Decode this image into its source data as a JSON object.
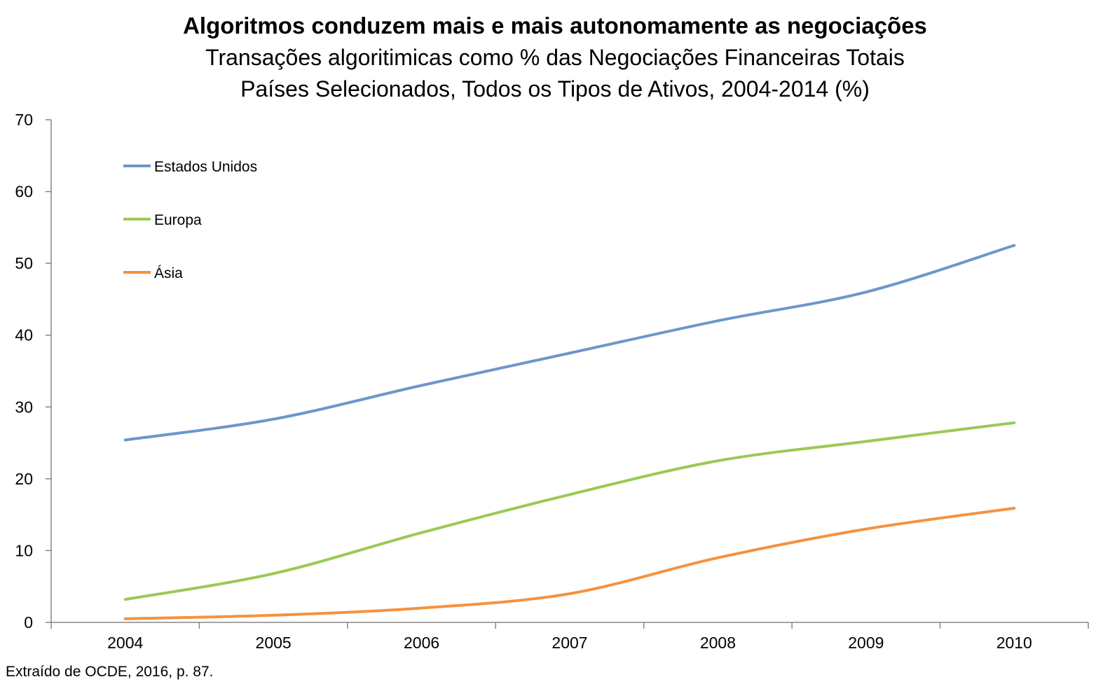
{
  "title": "Algoritmos conduzem mais e mais autonomamente as negociações",
  "subtitle1": "Transações algoritimicas como % das Negociações Financeiras Totais",
  "subtitle2": "Países Selecionados, Todos os Tipos de Ativos, 2004-2014 (%)",
  "footnote": "Extraído de OCDE, 2016, p. 87.",
  "chart_data": {
    "type": "line",
    "x": [
      "2004",
      "2005",
      "2006",
      "2007",
      "2008",
      "2009",
      "2010"
    ],
    "ylim": [
      0,
      70
    ],
    "yticks": [
      0,
      10,
      20,
      30,
      40,
      50,
      60,
      70
    ],
    "grid": false,
    "legend_position": "top-left",
    "series": [
      {
        "name": "Estados Unidos",
        "color": "#6C97CB",
        "values": [
          25.4,
          28.3,
          33.0,
          37.5,
          42.0,
          46.0,
          52.5
        ]
      },
      {
        "name": "Europa",
        "color": "#9BC956",
        "values": [
          3.2,
          6.8,
          12.5,
          17.8,
          22.5,
          25.2,
          27.8
        ]
      },
      {
        "name": "Ásia",
        "color": "#F5923E",
        "values": [
          0.5,
          1.0,
          2.0,
          4.0,
          9.0,
          13.0,
          15.9
        ]
      }
    ]
  }
}
